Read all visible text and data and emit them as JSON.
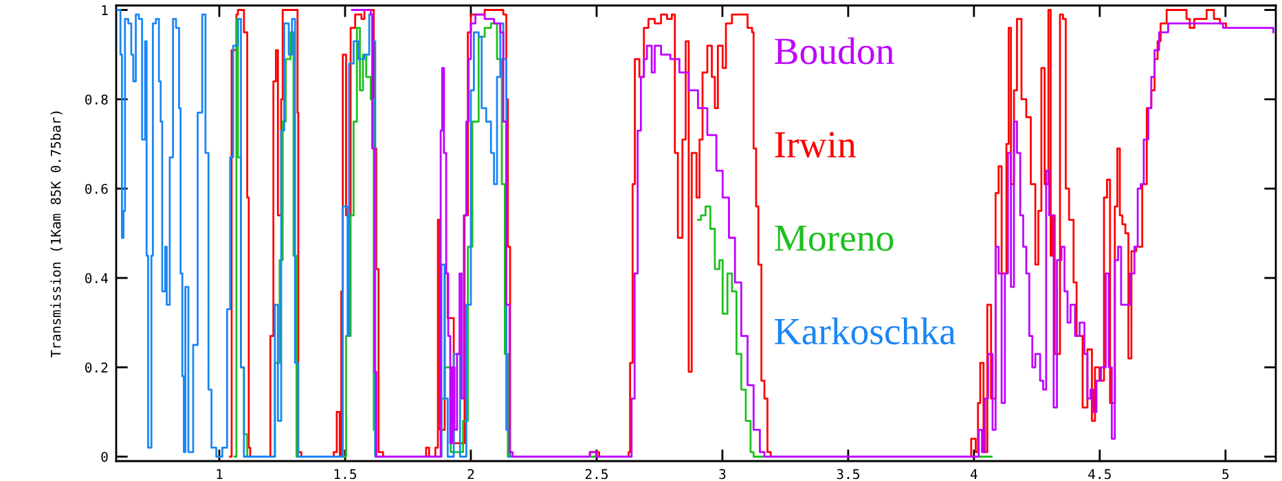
{
  "chart_data": {
    "type": "step",
    "ylabel": "Transmission (1Kam 85K 0.75bar)",
    "xlim": [
      0.59,
      5.2
    ],
    "ylim": [
      -0.01,
      1.01
    ],
    "xticks": [
      1,
      1.5,
      2,
      2.5,
      3,
      3.5,
      4,
      4.5,
      5
    ],
    "yticks": [
      0,
      0.2,
      0.4,
      0.6,
      0.8,
      1
    ],
    "grid": false,
    "legend": "top",
    "line_style": "solid",
    "marker": "none",
    "series": [
      {
        "name": "Boudon",
        "color": "#bf00ff",
        "x": [
          1.528,
          1.602,
          1.608,
          1.617,
          1.624,
          1.871,
          1.88,
          1.886,
          1.893,
          1.902,
          1.91,
          1.918,
          1.926,
          1.935,
          1.945,
          1.955,
          1.963,
          1.972,
          1.982,
          1.991,
          2.0,
          2.018,
          2.055,
          2.092,
          2.117,
          2.129,
          2.141,
          2.154,
          2.166,
          2.473,
          2.498,
          2.627,
          2.639,
          2.651,
          2.663,
          2.676,
          2.688,
          2.7,
          2.719,
          2.731,
          2.756,
          2.793,
          2.829,
          2.866,
          2.903,
          2.94,
          2.976,
          3.001,
          3.026,
          3.05,
          3.075,
          3.1,
          3.124,
          3.149,
          3.167,
          3.971,
          4.007,
          4.019,
          4.032,
          4.044,
          4.056,
          4.074,
          4.086,
          4.098,
          4.11,
          4.123,
          4.135,
          4.147,
          4.159,
          4.171,
          4.184,
          4.196,
          4.208,
          4.22,
          4.232,
          4.244,
          4.263,
          4.275,
          4.287,
          4.299,
          4.317,
          4.33,
          4.348,
          4.36,
          4.372,
          4.384,
          4.402,
          4.42,
          4.439,
          4.451,
          4.463,
          4.475,
          4.487,
          4.505,
          4.524,
          4.536,
          4.548,
          4.56,
          4.573,
          4.585,
          4.603,
          4.621,
          4.638,
          4.651,
          4.663,
          4.675,
          4.693,
          4.705,
          4.718,
          4.736,
          4.772,
          4.869,
          4.99,
          5.19
        ],
        "values": [
          1.0,
          0.99,
          0.69,
          0.19,
          0,
          0,
          0.73,
          0.87,
          0.68,
          0.41,
          0.27,
          0.03,
          0.2,
          0.06,
          0.23,
          0.41,
          0.13,
          0.54,
          0.75,
          0.89,
          0.97,
          0.99,
          0.98,
          0.97,
          0.95,
          0.75,
          0.34,
          0.01,
          0,
          0.01,
          0,
          0,
          0.13,
          0.41,
          0.73,
          0.85,
          0.89,
          0.92,
          0.86,
          0.92,
          0.9,
          0.89,
          0.86,
          0.82,
          0.78,
          0.72,
          0.64,
          0.58,
          0.49,
          0.39,
          0.27,
          0.16,
          0.06,
          0.01,
          0,
          0,
          0,
          0.06,
          0.01,
          0.13,
          0.23,
          0.06,
          0.47,
          0.41,
          0.12,
          0.41,
          0.68,
          0.38,
          0.75,
          0.68,
          0.54,
          0.47,
          0.41,
          0.27,
          0.2,
          0.23,
          0.17,
          0.15,
          0.64,
          0.54,
          0.11,
          0.44,
          0.47,
          0.37,
          0.3,
          0.34,
          0.27,
          0.3,
          0.23,
          0.13,
          0.15,
          0.1,
          0.17,
          0.2,
          0.41,
          0.2,
          0.04,
          0.44,
          0.47,
          0.34,
          0.34,
          0.41,
          0.47,
          0.6,
          0.61,
          0.71,
          0.78,
          0.85,
          0.91,
          0.95,
          0.97,
          0.97,
          0.96,
          0.95
        ]
      },
      {
        "name": "Irwin",
        "color": "#ff0000",
        "x": [
          1.043,
          1.049,
          1.068,
          1.074,
          1.092,
          1.098,
          1.111,
          1.117,
          1.123,
          1.197,
          1.203,
          1.215,
          1.225,
          1.233,
          1.246,
          1.252,
          1.27,
          1.283,
          1.295,
          1.311,
          1.314,
          1.326,
          1.455,
          1.467,
          1.479,
          1.485,
          1.491,
          1.504,
          1.522,
          1.54,
          1.565,
          1.577,
          1.608,
          1.614,
          1.624,
          1.633,
          1.651,
          1.773,
          1.822,
          1.834,
          1.859,
          1.869,
          1.877,
          1.896,
          1.908,
          1.932,
          1.975,
          1.988,
          2.0,
          2.018,
          2.055,
          2.129,
          2.141,
          2.147,
          2.156,
          2.473,
          2.51,
          2.627,
          2.633,
          2.643,
          2.652,
          2.67,
          2.688,
          2.706,
          2.731,
          2.756,
          2.78,
          2.799,
          2.811,
          2.823,
          2.841,
          2.854,
          2.866,
          2.878,
          2.897,
          2.909,
          2.921,
          2.94,
          2.958,
          2.97,
          2.982,
          3.001,
          3.014,
          3.038,
          3.075,
          3.1,
          3.118,
          3.124,
          3.134,
          3.143,
          3.155,
          3.167,
          3.179,
          3.192,
          3.971,
          3.989,
          4.007,
          4.016,
          4.025,
          4.038,
          4.053,
          4.068,
          4.086,
          4.098,
          4.11,
          4.129,
          4.138,
          4.147,
          4.159,
          4.171,
          4.189,
          4.208,
          4.226,
          4.244,
          4.256,
          4.268,
          4.281,
          4.296,
          4.305,
          4.311,
          4.321,
          4.342,
          4.354,
          4.365,
          4.378,
          4.396,
          4.408,
          4.432,
          4.451,
          4.469,
          4.481,
          4.499,
          4.517,
          4.529,
          4.541,
          4.56,
          4.57,
          4.58,
          4.59,
          4.602,
          4.614,
          4.626,
          4.645,
          4.669,
          4.687,
          4.705,
          4.718,
          4.73,
          4.742,
          4.766,
          4.827,
          4.845,
          4.858,
          4.876,
          4.925,
          4.954,
          4.978,
          5.002
        ],
        "values": [
          0,
          0.91,
          0.99,
          1.0,
          1.0,
          0.95,
          0.58,
          0.02,
          0,
          0,
          0.27,
          0.84,
          0.91,
          0.54,
          0.8,
          1.0,
          1.0,
          1.0,
          1.0,
          0.77,
          0.01,
          0,
          0.01,
          0.1,
          0,
          0.37,
          0.9,
          0.54,
          0.96,
          0.99,
          0.98,
          1.0,
          1.0,
          0.69,
          0.42,
          0.01,
          0,
          0,
          0.02,
          0,
          0.02,
          0.53,
          0.06,
          0.41,
          0.31,
          0.03,
          0.54,
          0.95,
          0.99,
          0.99,
          1.0,
          0.99,
          0.8,
          0.47,
          0,
          0.01,
          0,
          0.01,
          0.21,
          0.61,
          0.89,
          0.85,
          0.96,
          0.98,
          0.97,
          0.99,
          0.98,
          0.99,
          0.68,
          0.49,
          0.71,
          0.93,
          0.19,
          0.68,
          0.58,
          0.71,
          0.86,
          0.92,
          0.85,
          0.78,
          0.92,
          0.87,
          0.97,
          0.99,
          0.99,
          0.96,
          0.95,
          0.69,
          0.56,
          0.43,
          0.17,
          0.13,
          0.01,
          0,
          0,
          0.04,
          0.01,
          0.12,
          0.21,
          0.01,
          0.34,
          0.13,
          0.59,
          0.65,
          0.41,
          0.7,
          0.96,
          0.61,
          0.82,
          0.98,
          0.8,
          0.76,
          0.61,
          0.43,
          0.55,
          0.87,
          0.61,
          1.0,
          0.45,
          0.54,
          0.23,
          0.99,
          0.98,
          0.6,
          0.53,
          0.39,
          0.27,
          0.11,
          0.24,
          0.08,
          0.2,
          0.17,
          0.58,
          0.62,
          0.12,
          0.56,
          0.69,
          0.54,
          0.52,
          0.5,
          0.22,
          0.46,
          0.47,
          0.61,
          0.78,
          0.82,
          0.89,
          0.93,
          0.97,
          1.0,
          1.0,
          0.98,
          0.96,
          0.98,
          1.0,
          0.98,
          0.97,
          0.96
        ]
      },
      {
        "name": "Moreno",
        "color": "#1fbf1f",
        "x": [
          1.061,
          1.068,
          1.074,
          1.086,
          1.098,
          1.111,
          1.209,
          1.221,
          1.24,
          1.252,
          1.264,
          1.283,
          1.295,
          1.307,
          1.491,
          1.504,
          1.522,
          1.534,
          1.547,
          1.559,
          1.571,
          1.584,
          1.602,
          1.614,
          1.62,
          1.871,
          1.883,
          1.896,
          1.92,
          1.969,
          1.988,
          2.006,
          2.031,
          2.055,
          2.08,
          2.104,
          2.123,
          2.135,
          2.147,
          2.5,
          2.903,
          2.915,
          2.933,
          2.952,
          2.97,
          2.988,
          3.001,
          3.02,
          3.038,
          3.056,
          3.075,
          3.093,
          3.112,
          3.124,
          3.5,
          3.98,
          4.07
        ],
        "values": [
          0,
          0.98,
          0.67,
          0.2,
          0.05,
          0,
          0,
          0.21,
          0.44,
          0.75,
          0.89,
          0.95,
          0.45,
          0,
          0,
          0.27,
          0.54,
          0.75,
          0.96,
          0.82,
          0.9,
          0.85,
          0.8,
          0.06,
          0,
          0,
          0.13,
          0.2,
          0.01,
          0.08,
          0.47,
          0.75,
          0.94,
          0.96,
          0.97,
          0.89,
          0.61,
          0.23,
          0,
          null,
          0.53,
          0.54,
          0.56,
          0.51,
          0.42,
          0.44,
          0.32,
          0.41,
          0.37,
          0.23,
          0.15,
          0.08,
          0.01,
          0,
          null,
          0,
          0
        ]
      },
      {
        "name": "Karkoschka",
        "color": "#1a86f5",
        "x": [
          0.595,
          0.607,
          0.613,
          0.619,
          0.625,
          0.638,
          0.65,
          0.658,
          0.668,
          0.68,
          0.693,
          0.705,
          0.711,
          0.717,
          0.73,
          0.736,
          0.748,
          0.76,
          0.767,
          0.773,
          0.785,
          0.791,
          0.803,
          0.816,
          0.828,
          0.84,
          0.846,
          0.853,
          0.859,
          0.865,
          0.877,
          0.896,
          0.914,
          0.932,
          0.945,
          0.957,
          0.969,
          0.988,
          1.012,
          1.031,
          1.043,
          1.055,
          1.074,
          1.086,
          1.098,
          1.209,
          1.221,
          1.233,
          1.246,
          1.258,
          1.276,
          1.289,
          1.301,
          1.313,
          1.485,
          1.491,
          1.51,
          1.516,
          1.534,
          1.553,
          1.577,
          1.596,
          1.608,
          1.62,
          1.877,
          1.883,
          1.896,
          1.908,
          1.932,
          1.957,
          1.982,
          2.0,
          2.012,
          2.031,
          2.043,
          2.061,
          2.08,
          2.092,
          2.104,
          2.117,
          2.129,
          2.141,
          2.154,
          2.203
        ],
        "values": [
          1.0,
          0.9,
          0.49,
          0.55,
          0.98,
          0.97,
          0.9,
          0.84,
          0.99,
          0.98,
          0.71,
          0.93,
          0.45,
          0.02,
          0.45,
          0.97,
          0.98,
          0.84,
          0.75,
          0.37,
          0.47,
          0.34,
          0.67,
          0.98,
          0.96,
          0.78,
          0.41,
          0.18,
          0.01,
          0.38,
          0.01,
          0.25,
          0.77,
          0.99,
          0.68,
          0.15,
          0.02,
          0,
          0.02,
          0.33,
          0.67,
          0.92,
          0.98,
          0.2,
          0,
          0,
          0.34,
          0.08,
          0.73,
          0.97,
          0.9,
          0.98,
          0.21,
          0,
          0,
          0.56,
          0.27,
          0.88,
          0.93,
          0.89,
          0.9,
          0.99,
          0.93,
          0,
          0,
          0.43,
          0.13,
          0,
          0.23,
          0,
          0.34,
          0.82,
          0.95,
          0.94,
          0.78,
          0.75,
          0.68,
          0.61,
          0.85,
          0.97,
          0.89,
          0.06,
          0,
          0
        ]
      }
    ]
  }
}
